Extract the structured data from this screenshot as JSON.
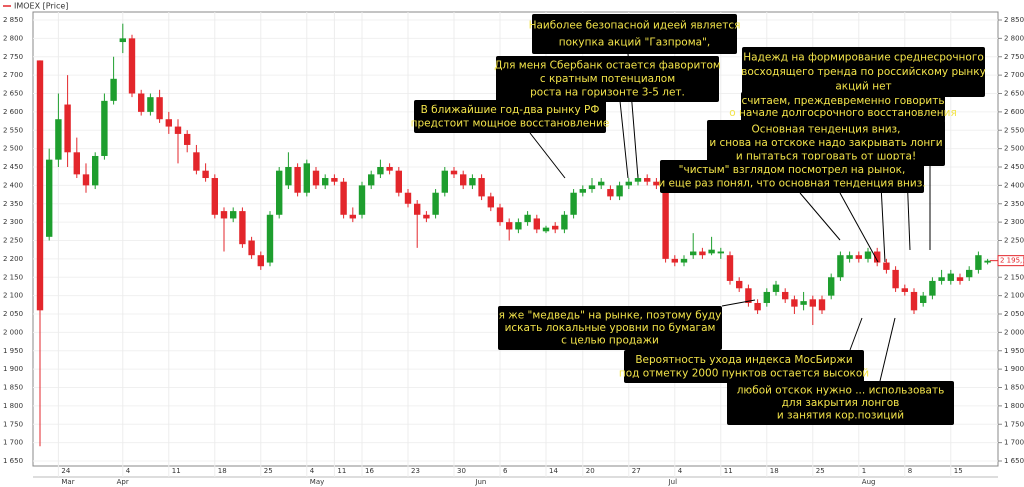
{
  "chart_data": {
    "type": "candlestick",
    "legend": "IMOEX [Price]",
    "up_color": "#1e9e2e",
    "down_color": "#e3262b",
    "grid": true,
    "ylim": [
      1650,
      2850
    ],
    "yticks": [
      {
        "value": 1650,
        "label": "1 650"
      },
      {
        "value": 1700,
        "label": "1 700"
      },
      {
        "value": 1750,
        "label": "1 750"
      },
      {
        "value": 1800,
        "label": "1 800"
      },
      {
        "value": 1850,
        "label": "1 850"
      },
      {
        "value": 1900,
        "label": "1 900"
      },
      {
        "value": 1950,
        "label": "1 950"
      },
      {
        "value": 2000,
        "label": "2 000"
      },
      {
        "value": 2050,
        "label": "2 050"
      },
      {
        "value": 2100,
        "label": "2 100"
      },
      {
        "value": 2150,
        "label": "2 150"
      },
      {
        "value": 2200,
        "label": "2 200"
      },
      {
        "value": 2250,
        "label": "2 250"
      },
      {
        "value": 2300,
        "label": "2 300"
      },
      {
        "value": 2350,
        "label": "2 350"
      },
      {
        "value": 2400,
        "label": "2 400"
      },
      {
        "value": 2450,
        "label": "2 450"
      },
      {
        "value": 2500,
        "label": "2 500"
      },
      {
        "value": 2550,
        "label": "2 550"
      },
      {
        "value": 2600,
        "label": "2 600"
      },
      {
        "value": 2650,
        "label": "2 650"
      },
      {
        "value": 2700,
        "label": "2 700"
      },
      {
        "value": 2750,
        "label": "2 750"
      },
      {
        "value": 2800,
        "label": "2 800"
      },
      {
        "value": 2850,
        "label": "2 850"
      }
    ],
    "last_price": {
      "value": 2195.16,
      "label": "2 195,16"
    },
    "categories": [
      null,
      null,
      "24",
      null,
      null,
      null,
      null,
      null,
      null,
      "4",
      null,
      null,
      null,
      null,
      "11",
      null,
      null,
      null,
      null,
      "18",
      null,
      null,
      null,
      null,
      "25",
      null,
      null,
      null,
      null,
      "4",
      null,
      null,
      "11",
      null,
      null,
      "16",
      null,
      null,
      null,
      null,
      "23",
      null,
      null,
      null,
      null,
      "30",
      null,
      null,
      null,
      null,
      "6",
      null,
      null,
      null,
      null,
      "14",
      null,
      null,
      null,
      "20",
      null,
      null,
      null,
      null,
      "27",
      null,
      null,
      null,
      null,
      "4",
      null,
      null,
      null,
      null,
      "11",
      null,
      null,
      null,
      null,
      "18",
      null,
      null,
      null,
      null,
      "25",
      null,
      null,
      null,
      null,
      "1",
      null,
      null,
      null,
      null,
      "8",
      null,
      null,
      null,
      null,
      "15",
      null,
      null,
      null,
      null
    ],
    "months": [
      null,
      null,
      "Mar",
      null,
      null,
      null,
      null,
      null,
      "Apr",
      null,
      null,
      null,
      null,
      null,
      null,
      null,
      null,
      null,
      null,
      null,
      null,
      null,
      null,
      null,
      null,
      null,
      null,
      null,
      null,
      "May",
      null,
      null,
      null,
      null,
      null,
      null,
      null,
      null,
      null,
      null,
      null,
      null,
      null,
      null,
      null,
      null,
      null,
      "Jun",
      null,
      null,
      null,
      null,
      null,
      null,
      null,
      null,
      null,
      null,
      null,
      null,
      null,
      null,
      null,
      null,
      null,
      null,
      null,
      null,
      "Jul",
      null,
      null,
      null,
      null,
      null,
      null,
      null,
      null,
      null,
      null,
      null,
      null,
      null,
      null,
      null,
      null,
      null,
      null,
      null,
      null,
      "Aug",
      null,
      null,
      null,
      null,
      null,
      null,
      null,
      null,
      null,
      null,
      null,
      null,
      null,
      null
    ],
    "open": [
      2740,
      2260,
      2470,
      2620,
      2490,
      2430,
      2400,
      2480,
      2630,
      2790,
      2800,
      2650,
      2600,
      2640,
      2580,
      2560,
      2540,
      2490,
      2440,
      2420,
      2330,
      2310,
      2330,
      2250,
      2210,
      2190,
      2320,
      2400,
      2450,
      2380,
      2440,
      2400,
      2420,
      2410,
      2320,
      2320,
      2400,
      2430,
      2450,
      2440,
      2380,
      2350,
      2320,
      2320,
      2380,
      2440,
      2430,
      2400,
      2420,
      2370,
      2340,
      2300,
      2280,
      2300,
      2310,
      2275,
      2290,
      2280,
      2320,
      2380,
      2390,
      2400,
      2390,
      2370,
      2400,
      2410,
      2420,
      2410,
      2380,
      2200,
      2190,
      2210,
      2220,
      2215,
      2215,
      2210,
      2140,
      2120,
      2080,
      2080,
      2110,
      2110,
      2090,
      2075,
      2090,
      2090,
      2100,
      2150,
      2200,
      2210,
      2200,
      2220,
      2190,
      2170,
      2120,
      2110,
      2080,
      2100,
      2140,
      2140,
      2150,
      2150,
      2170,
      2190
    ],
    "high": [
      2740,
      2500,
      2650,
      2700,
      2530,
      2460,
      2490,
      2650,
      2750,
      2840,
      2810,
      2660,
      2650,
      2660,
      2600,
      2580,
      2550,
      2510,
      2460,
      2430,
      2340,
      2340,
      2340,
      2260,
      2220,
      2330,
      2450,
      2490,
      2460,
      2470,
      2450,
      2430,
      2430,
      2420,
      2340,
      2410,
      2440,
      2470,
      2460,
      2450,
      2390,
      2360,
      2330,
      2390,
      2450,
      2450,
      2440,
      2430,
      2430,
      2380,
      2350,
      2310,
      2310,
      2330,
      2320,
      2290,
      2300,
      2330,
      2390,
      2400,
      2420,
      2420,
      2400,
      2410,
      2420,
      2430,
      2430,
      2420,
      2390,
      2210,
      2210,
      2270,
      2230,
      2260,
      2230,
      2220,
      2150,
      2130,
      2090,
      2120,
      2140,
      2120,
      2100,
      2110,
      2100,
      2100,
      2160,
      2220,
      2220,
      2220,
      2230,
      2230,
      2200,
      2180,
      2130,
      2120,
      2110,
      2150,
      2170,
      2170,
      2160,
      2180,
      2220,
      2200
    ],
    "low": [
      1690,
      2250,
      2450,
      2450,
      2420,
      2380,
      2390,
      2470,
      2620,
      2760,
      2640,
      2590,
      2590,
      2570,
      2540,
      2460,
      2490,
      2430,
      2410,
      2310,
      2220,
      2300,
      2230,
      2200,
      2170,
      2180,
      2310,
      2390,
      2370,
      2370,
      2390,
      2390,
      2400,
      2310,
      2300,
      2310,
      2390,
      2420,
      2430,
      2370,
      2340,
      2230,
      2300,
      2310,
      2370,
      2420,
      2390,
      2390,
      2360,
      2330,
      2290,
      2250,
      2270,
      2290,
      2270,
      2270,
      2270,
      2270,
      2310,
      2370,
      2380,
      2390,
      2360,
      2360,
      2390,
      2400,
      2400,
      2390,
      2190,
      2180,
      2180,
      2200,
      2200,
      2210,
      2200,
      2130,
      2110,
      2070,
      2050,
      2070,
      2100,
      2080,
      2050,
      2060,
      2020,
      2050,
      2090,
      2140,
      2190,
      2190,
      2190,
      2180,
      2160,
      2110,
      2100,
      2050,
      2070,
      2090,
      2130,
      2130,
      2130,
      2140,
      2160,
      2185
    ],
    "close": [
      2060,
      2470,
      2580,
      2490,
      2430,
      2400,
      2480,
      2630,
      2690,
      2800,
      2650,
      2600,
      2640,
      2580,
      2560,
      2540,
      2510,
      2440,
      2420,
      2320,
      2310,
      2330,
      2240,
      2210,
      2180,
      2320,
      2440,
      2450,
      2380,
      2460,
      2400,
      2420,
      2410,
      2320,
      2310,
      2400,
      2430,
      2450,
      2440,
      2380,
      2350,
      2320,
      2310,
      2380,
      2440,
      2430,
      2400,
      2420,
      2370,
      2340,
      2300,
      2280,
      2300,
      2320,
      2280,
      2285,
      2280,
      2320,
      2380,
      2390,
      2400,
      2410,
      2370,
      2400,
      2410,
      2420,
      2410,
      2400,
      2200,
      2190,
      2200,
      2220,
      2210,
      2225,
      2220,
      2140,
      2120,
      2080,
      2060,
      2110,
      2130,
      2090,
      2070,
      2085,
      2070,
      2060,
      2150,
      2210,
      2210,
      2200,
      2220,
      2190,
      2170,
      2120,
      2110,
      2060,
      2100,
      2140,
      2150,
      2160,
      2140,
      2170,
      2210,
      2195.16
    ],
    "annotations": [
      {
        "lines": [
          "Наиболее безопасной идеей является",
          "покупка акций \"Газпрома\","
        ]
      },
      {
        "lines": [
          "Для меня Сбербанк остается фаворитом",
          "с кратным потенциалом",
          "роста на горизонте 3-5 лет."
        ]
      },
      {
        "lines": [
          "В ближайшие год-два рынку РФ",
          "предстоит мощное восстановление"
        ]
      },
      {
        "lines": [
          "Надежд на формирование среднесрочного",
          "восходящего тренда по российскому рынку",
          "акций нет"
        ]
      },
      {
        "lines": [
          "считаем, преждевременно говорить",
          "о начале долгосрочного восстановления"
        ]
      },
      {
        "lines": [
          "Основная тенденция вниз,",
          "и снова на отскоке надо закрывать лонги",
          "и пытаться торговать от шорта!"
        ]
      },
      {
        "lines": [
          "\"чистым\" взглядом посмотрел на рынок,",
          "и еще раз понял, что основная тенденция вниз."
        ]
      },
      {
        "lines": [
          "я же \"медведь\" на рынке, поэтому буду",
          "искать локальные уровни по бумагам",
          "с целью продажи"
        ]
      },
      {
        "lines": [
          "Вероятность ухода индекса МосБиржи",
          "под отметку 2000 пунктов остается высокой"
        ]
      },
      {
        "lines": [
          "любой отскок нужно ... использовать",
          "для закрытия лонгов",
          "и занятия кор.позиций"
        ]
      }
    ]
  }
}
